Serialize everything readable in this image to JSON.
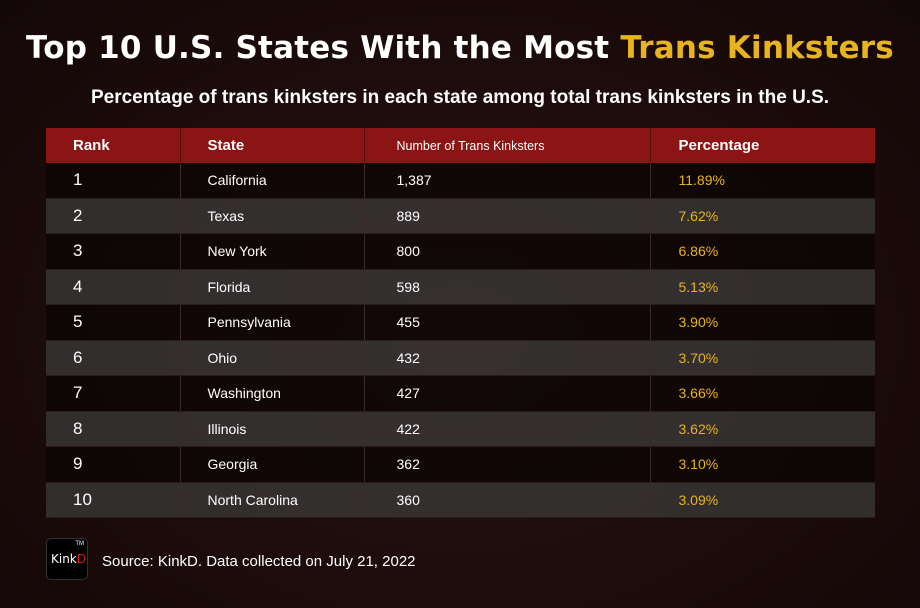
{
  "header": {
    "title_part1": "Top 10 U.S. States With the Most ",
    "title_highlight": "Trans Kinksters",
    "subtitle": "Percentage of trans kinksters in each state among total trans kinksters in the U.S."
  },
  "colors": {
    "background": "#1d0c0c",
    "header_row": "#8b1414",
    "highlight": "#e8b320",
    "row_dark": "#0a0404",
    "row_light": "#3a3838"
  },
  "chart_data": {
    "type": "table",
    "columns": [
      "Rank",
      "State",
      "Number of Trans Kinksters",
      "Percentage"
    ],
    "rows": [
      [
        "1",
        "California",
        "1,387",
        "11.89%"
      ],
      [
        "2",
        "Texas",
        "889",
        "7.62%"
      ],
      [
        "3",
        "New York",
        "800",
        "6.86%"
      ],
      [
        "4",
        "Florida",
        "598",
        "5.13%"
      ],
      [
        "5",
        "Pennsylvania",
        "455",
        "3.90%"
      ],
      [
        "6",
        "Ohio",
        "432",
        "3.70%"
      ],
      [
        "7",
        "Washington",
        "427",
        "3.66%"
      ],
      [
        "8",
        "Illinois",
        "422",
        "3.62%"
      ],
      [
        "9",
        "Georgia",
        "362",
        "3.10%"
      ],
      [
        "10",
        "North Carolina",
        "360",
        "3.09%"
      ]
    ]
  },
  "footer": {
    "logo_text_main": "Kink",
    "logo_text_accent": "D",
    "logo_tm": "TM",
    "source": "Source: KinkD. Data collected on July 21, 2022"
  }
}
